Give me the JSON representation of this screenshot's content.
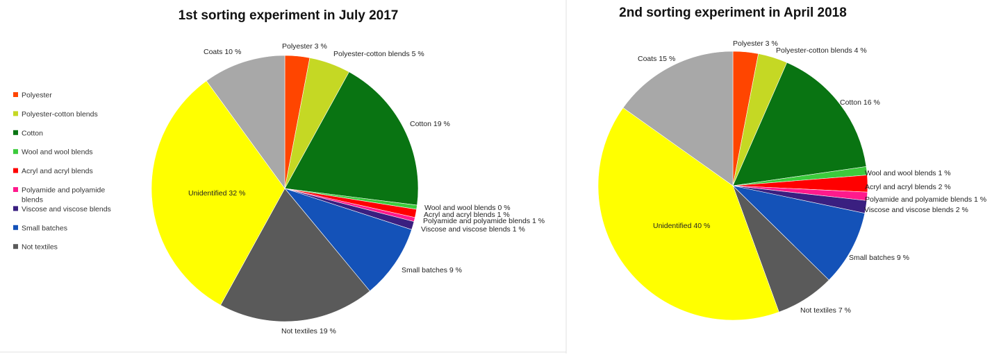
{
  "legend": [
    {
      "label": "Polyester",
      "color": "#FF4500"
    },
    {
      "label": "Polyester-cotton blends",
      "color": "#C5D824"
    },
    {
      "label": "Cotton",
      "color": "#097412"
    },
    {
      "label": "Wool and wool blends",
      "color": "#3CCB3C"
    },
    {
      "label": "Acryl and acryl blends",
      "color": "#FF0000"
    },
    {
      "label": "Polyamide and polyamide blends",
      "color": "#FF1A8C"
    },
    {
      "label": "Viscose and viscose blends",
      "color": "#3A1F80"
    },
    {
      "label": "Small batches",
      "color": "#1452B8"
    },
    {
      "label": "Not textiles",
      "color": "#5A5A5A"
    }
  ],
  "chart_data": [
    {
      "type": "pie",
      "title": "1st sorting experiment in July 2017",
      "slices": [
        {
          "label": "Polyester 3 %",
          "value": 3,
          "color": "#FF4500"
        },
        {
          "label": "Polyester-cotton blends 5 %",
          "value": 5,
          "color": "#C5D824"
        },
        {
          "label": "Cotton 19 %",
          "value": 19,
          "color": "#097412"
        },
        {
          "label": "Wool and wool blends 0 %",
          "value": 0.5,
          "color": "#3CCB3C"
        },
        {
          "label": "Acryl and acryl blends 1 %",
          "value": 1,
          "color": "#FF0000"
        },
        {
          "label": "Polyamide and polyamide blends 1 %",
          "value": 0.5,
          "color": "#FF1A8C"
        },
        {
          "label": "Viscose and viscose blends 1 %",
          "value": 1,
          "color": "#3A1F80"
        },
        {
          "label": "Small batches 9 %",
          "value": 9,
          "color": "#1452B8"
        },
        {
          "label": "Not textiles 19 %",
          "value": 19,
          "color": "#5A5A5A"
        },
        {
          "label": "Unidentified 32 %",
          "value": 32,
          "color": "#FFFF00"
        },
        {
          "label": "Coats 10 %",
          "value": 10,
          "color": "#A8A8A8"
        }
      ]
    },
    {
      "type": "pie",
      "title": "2nd sorting experiment in April 2018",
      "slices": [
        {
          "label": "Polyester 3 %",
          "value": 3,
          "color": "#FF4500"
        },
        {
          "label": "Polyester-cotton blends 4 %",
          "value": 3.5,
          "color": "#C5D824"
        },
        {
          "label": "Cotton 16 %",
          "value": 16,
          "color": "#097412"
        },
        {
          "label": "Wool and wool blends 1 %",
          "value": 1,
          "color": "#3CCB3C"
        },
        {
          "label": "Acryl and acryl blends 2 %",
          "value": 2,
          "color": "#FF0000"
        },
        {
          "label": "Polyamide and polyamide blends 1 %",
          "value": 1,
          "color": "#FF1A8C"
        },
        {
          "label": "Viscose and viscose blends 2 %",
          "value": 1.5,
          "color": "#3A1F80"
        },
        {
          "label": "Small batches 9 %",
          "value": 9,
          "color": "#1452B8"
        },
        {
          "label": "Not textiles 7 %",
          "value": 7,
          "color": "#5A5A5A"
        },
        {
          "label": "Unidentified 40 %",
          "value": 40,
          "color": "#FFFF00"
        },
        {
          "label": "Coats 15 %",
          "value": 15,
          "color": "#A8A8A8"
        }
      ]
    }
  ]
}
